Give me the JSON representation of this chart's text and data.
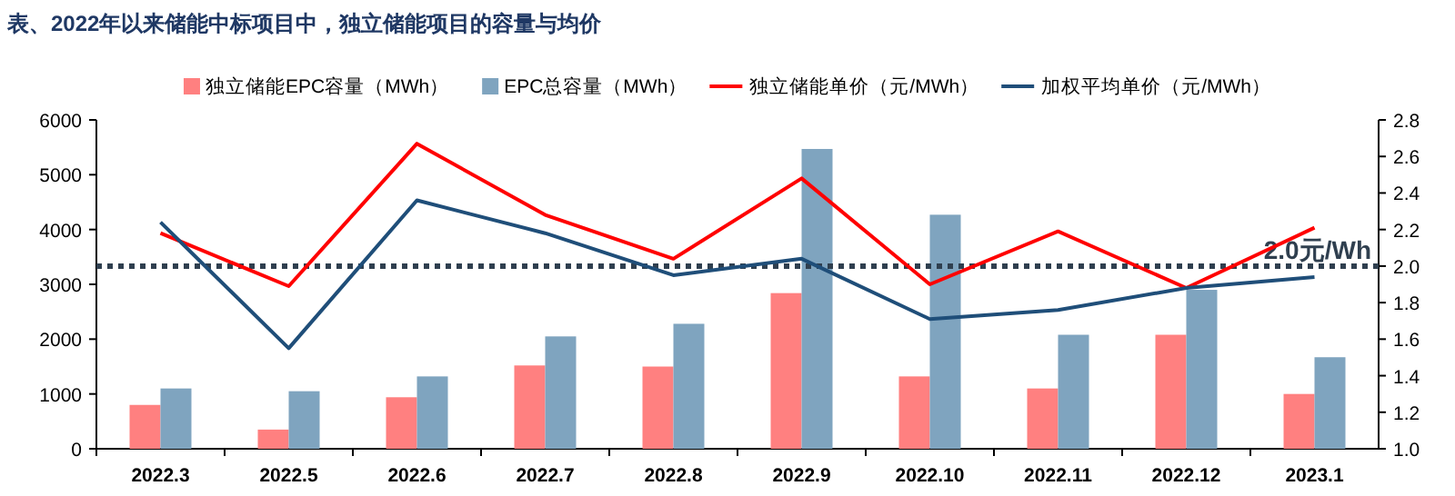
{
  "chart_data": {
    "type": "bar",
    "title": "表、2022年以来储能中标项目中，独立储能项目的容量与均价",
    "categories": [
      "2022.3",
      "2022.5",
      "2022.6",
      "2022.7",
      "2022.8",
      "2022.9",
      "2022.10",
      "2022.11",
      "2022.12",
      "2023.1"
    ],
    "series": [
      {
        "name": "独立储能EPC容量（MWh）",
        "color": "#ff8080",
        "values": [
          800,
          350,
          940,
          1520,
          1500,
          2840,
          1320,
          1100,
          2080,
          1000
        ]
      },
      {
        "name": "EPC总容量（MWh）",
        "color": "#7fa4bf",
        "values": [
          1100,
          1050,
          1320,
          2050,
          2280,
          5470,
          4270,
          2080,
          2900,
          1670
        ]
      },
      {
        "type": "line",
        "axis": "y2",
        "name": "独立储能单价（元/MWh）",
        "color": "#ff0000",
        "values": [
          2.18,
          1.89,
          2.67,
          2.28,
          2.04,
          2.48,
          1.9,
          2.19,
          1.88,
          2.21
        ]
      },
      {
        "type": "line",
        "axis": "y2",
        "name": "加权平均单价（元/MWh）",
        "color": "#1f4e79",
        "values": [
          2.24,
          1.55,
          2.36,
          2.18,
          1.95,
          2.04,
          1.71,
          1.76,
          1.88,
          1.94
        ]
      }
    ],
    "ylim": [
      0,
      6000
    ],
    "yticks": [
      0,
      1000,
      2000,
      3000,
      4000,
      5000,
      6000
    ],
    "y2lim": [
      1.0,
      2.8
    ],
    "y2ticks": [
      {
        "value": 1.0,
        "label": "1.0"
      },
      {
        "value": 1.2,
        "label": "1.2"
      },
      {
        "value": 1.4,
        "label": "1.4"
      },
      {
        "value": 1.6,
        "label": "1.6"
      },
      {
        "value": 1.8,
        "label": "1.8"
      },
      {
        "value": 2.0,
        "label": "2.0"
      },
      {
        "value": 2.2,
        "label": "2.2"
      },
      {
        "value": 2.4,
        "label": "2.4"
      },
      {
        "value": 2.6,
        "label": "2.6"
      },
      {
        "value": 2.8,
        "label": "2.8"
      }
    ],
    "ref_lines": [
      {
        "axis": "y2",
        "value": 2.0,
        "label": "2.0元/Wh",
        "color": "#2f3f4f",
        "line_style": "dotted"
      }
    ],
    "legend": "top"
  }
}
